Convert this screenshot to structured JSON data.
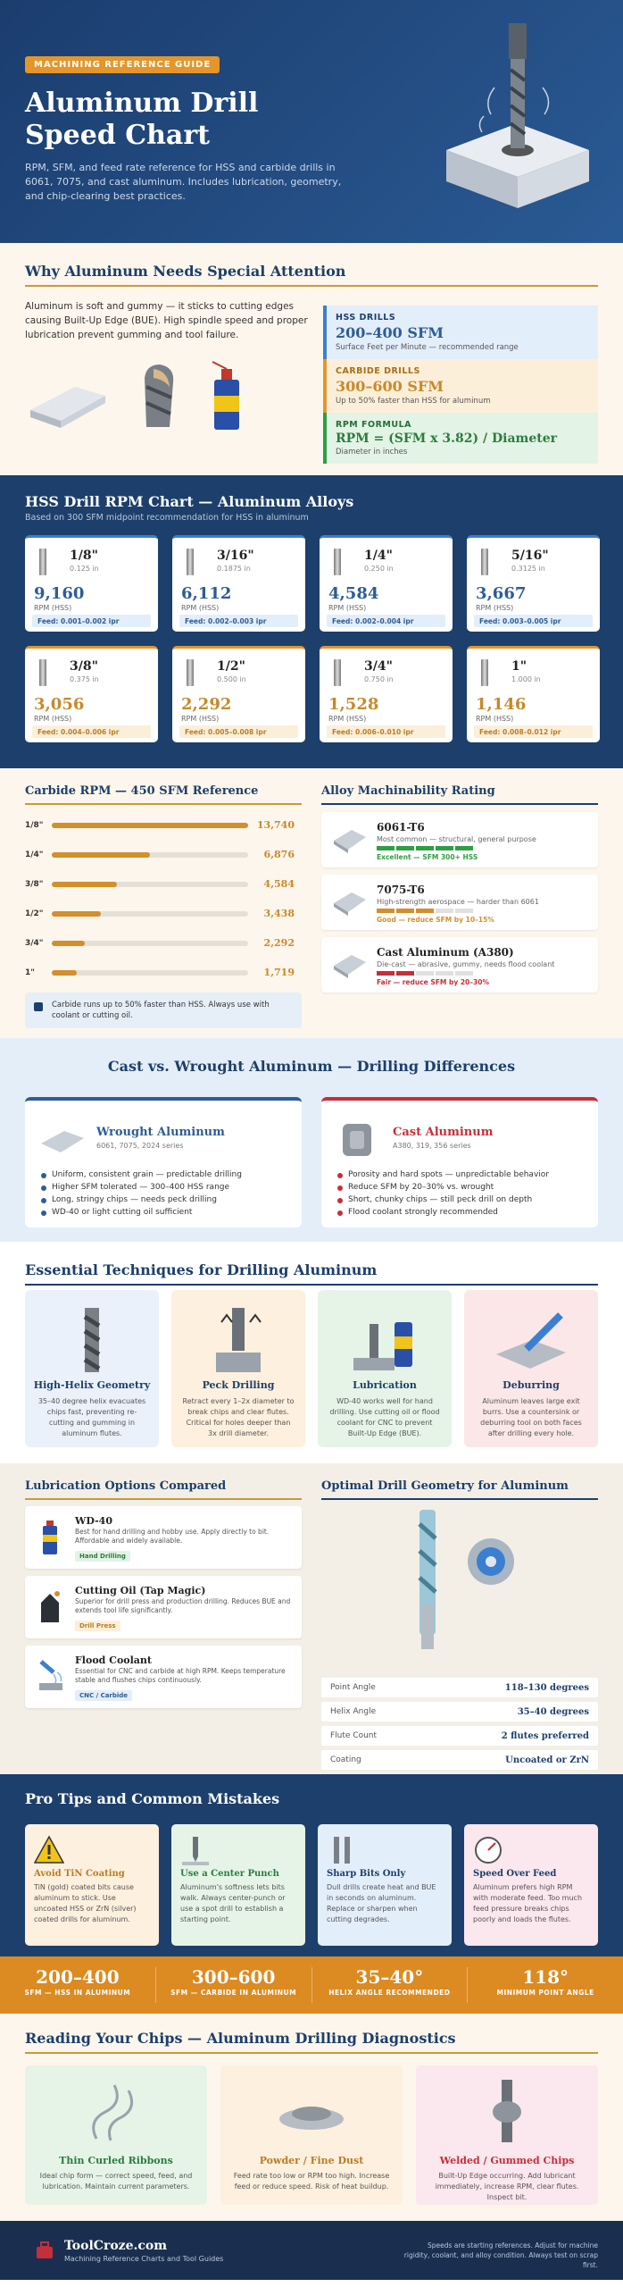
{
  "hero": {
    "badge": "MACHINING REFERENCE GUIDE",
    "title": "Aluminum Drill Speed Chart",
    "description": "RPM, SFM, and feed rate reference for HSS and carbide drills in 6061, 7075, and cast aluminum. Includes lubrication, geometry, and chip-clearing best practices."
  },
  "why": {
    "title": "Why Aluminum Needs Special Attention",
    "body": "Aluminum is soft and gummy — it sticks to cutting edges causing Built-Up Edge (BUE). High spindle speed and proper lubrication prevent gumming and tool failure.",
    "boxes": [
      {
        "label": "HSS DRILLS",
        "value": "200–400 SFM",
        "sub": "Surface Feet per Minute — recommended range"
      },
      {
        "label": "CARBIDE DRILLS",
        "value": "300–600 SFM",
        "sub": "Up to 50% faster than HSS for aluminum"
      },
      {
        "label": "RPM FORMULA",
        "value": "RPM = (SFM x 3.82) / Diameter",
        "sub": "Diameter in inches"
      }
    ]
  },
  "hss": {
    "title": "HSS Drill RPM Chart — Aluminum Alloys",
    "subtitle": "Based on 300 SFM midpoint recommendation for HSS in aluminum",
    "cards": [
      {
        "size": "1/8\"",
        "dec": "0.125 in",
        "rpm": "9,160",
        "unit": "RPM (HSS)",
        "feed": "Feed: 0.001–0.002 ipr"
      },
      {
        "size": "3/16\"",
        "dec": "0.1875 in",
        "rpm": "6,112",
        "unit": "RPM (HSS)",
        "feed": "Feed: 0.002–0.003 ipr"
      },
      {
        "size": "1/4\"",
        "dec": "0.250 in",
        "rpm": "4,584",
        "unit": "RPM (HSS)",
        "feed": "Feed: 0.002–0.004 ipr"
      },
      {
        "size": "5/16\"",
        "dec": "0.3125 in",
        "rpm": "3,667",
        "unit": "RPM (HSS)",
        "feed": "Feed: 0.003–0.005 ipr"
      },
      {
        "size": "3/8\"",
        "dec": "0.375 in",
        "rpm": "3,056",
        "unit": "RPM (HSS)",
        "feed": "Feed: 0.004–0.006 ipr"
      },
      {
        "size": "1/2\"",
        "dec": "0.500 in",
        "rpm": "2,292",
        "unit": "RPM (HSS)",
        "feed": "Feed: 0.005–0.008 ipr"
      },
      {
        "size": "3/4\"",
        "dec": "0.750 in",
        "rpm": "1,528",
        "unit": "RPM (HSS)",
        "feed": "Feed: 0.006–0.010 ipr"
      },
      {
        "size": "1\"",
        "dec": "1.000 in",
        "rpm": "1,146",
        "unit": "RPM (HSS)",
        "feed": "Feed: 0.008–0.012 ipr"
      }
    ]
  },
  "carbide": {
    "title": "Carbide RPM — 450 SFM Reference",
    "note": "Carbide runs up to 50% faster than HSS. Always use with coolant or cutting oil."
  },
  "chart_data": {
    "type": "bar",
    "title": "Carbide RPM — 450 SFM Reference",
    "categories": [
      "1/8\"",
      "1/4\"",
      "3/8\"",
      "1/2\"",
      "3/4\"",
      "1\""
    ],
    "value_labels": [
      "13,740",
      "6,876",
      "4,584",
      "3,438",
      "2,292",
      "1,719"
    ],
    "values": [
      13740,
      6876,
      4584,
      3438,
      2292,
      1719
    ],
    "xlim": [
      0,
      13740
    ],
    "orientation": "horizontal"
  },
  "machinability": {
    "title": "Alloy Machinability Rating",
    "alloys": [
      {
        "name": "6061-T6",
        "desc": "Most common — structural, general purpose",
        "rating": "Excellent — SFM 300+ HSS",
        "score": 5,
        "color": "#2f9e45"
      },
      {
        "name": "7075-T6",
        "desc": "High-strength aerospace — harder than 6061",
        "rating": "Good — reduce SFM by 10–15%",
        "score": 3,
        "color": "#d18f2e"
      },
      {
        "name": "Cast Aluminum (A380)",
        "desc": "Die-cast — abrasive, gummy, needs flood coolant",
        "rating": "Fair — reduce SFM by 20–30%",
        "score": 2,
        "color": "#c62e3a"
      }
    ]
  },
  "compare": {
    "title": "Cast vs. Wrought Aluminum — Drilling Differences",
    "wrought": {
      "name": "Wrought Aluminum",
      "series": "6061, 7075, 2024 series",
      "points": [
        "Uniform, consistent grain — predictable drilling",
        "Higher SFM tolerated — 300–400 HSS range",
        "Long, stringy chips — needs peck drilling",
        "WD-40 or light cutting oil sufficient"
      ]
    },
    "cast": {
      "name": "Cast Aluminum",
      "series": "A380, 319, 356 series",
      "points": [
        "Porosity and hard spots — unpredictable behavior",
        "Reduce SFM by 20–30% vs. wrought",
        "Short, chunky chips — still peck drill on depth",
        "Flood coolant strongly recommended"
      ]
    }
  },
  "techniques": {
    "title": "Essential Techniques for Drilling Aluminum",
    "items": [
      {
        "title": "High-Helix Geometry",
        "desc": "35–40 degree helix evacuates chips fast, preventing re-cutting and gumming in aluminum flutes."
      },
      {
        "title": "Peck Drilling",
        "desc": "Retract every 1–2x diameter to break chips and clear flutes. Critical for holes deeper than 3x drill diameter."
      },
      {
        "title": "Lubrication",
        "desc": "WD-40 works well for hand drilling. Use cutting oil or flood coolant for CNC to prevent Built-Up Edge (BUE)."
      },
      {
        "title": "Deburring",
        "desc": "Aluminum leaves large exit burrs. Use a countersink or deburring tool on both faces after drilling every hole."
      }
    ]
  },
  "lubrication": {
    "title": "Lubrication Options Compared",
    "items": [
      {
        "name": "WD-40",
        "desc": "Best for hand drilling and hobby use. Apply directly to bit. Affordable and widely available.",
        "tag": "Hand Drilling"
      },
      {
        "name": "Cutting Oil (Tap Magic)",
        "desc": "Superior for drill press and production drilling. Reduces BUE and extends tool life significantly.",
        "tag": "Drill Press"
      },
      {
        "name": "Flood Coolant",
        "desc": "Essential for CNC and carbide at high RPM. Keeps temperature stable and flushes chips continuously.",
        "tag": "CNC / Carbide"
      }
    ]
  },
  "geometry": {
    "title": "Optimal Drill Geometry for Aluminum",
    "rows": [
      {
        "k": "Point Angle",
        "v": "118–130 degrees"
      },
      {
        "k": "Helix Angle",
        "v": "35–40 degrees"
      },
      {
        "k": "Flute Count",
        "v": "2 flutes preferred"
      },
      {
        "k": "Coating",
        "v": "Uncoated or ZrN"
      }
    ]
  },
  "tips": {
    "title": "Pro Tips and Common Mistakes",
    "items": [
      {
        "title": "Avoid TiN Coating",
        "desc": "TiN (gold) coated bits cause aluminum to stick. Use uncoated HSS or ZrN (silver) coated drills for aluminum."
      },
      {
        "title": "Use a Center Punch",
        "desc": "Aluminum's softness lets bits walk. Always center-punch or use a spot drill to establish a starting point."
      },
      {
        "title": "Sharp Bits Only",
        "desc": "Dull drills create heat and BUE in seconds on aluminum. Replace or sharpen when cutting degrades."
      },
      {
        "title": "Speed Over Feed",
        "desc": "Aluminum prefers high RPM with moderate feed. Too much feed pressure breaks chips poorly and loads the flutes."
      }
    ]
  },
  "stats": [
    {
      "v": "200–400",
      "l": "SFM — HSS IN ALUMINUM"
    },
    {
      "v": "300–600",
      "l": "SFM — CARBIDE IN ALUMINUM"
    },
    {
      "v": "35–40°",
      "l": "HELIX ANGLE RECOMMENDED"
    },
    {
      "v": "118°",
      "l": "MINIMUM POINT ANGLE"
    }
  ],
  "chips": {
    "title": "Reading Your Chips — Aluminum Drilling Diagnostics",
    "items": [
      {
        "title": "Thin Curled Ribbons",
        "desc": "Ideal chip form — correct speed, feed, and lubrication. Maintain current parameters."
      },
      {
        "title": "Powder / Fine Dust",
        "desc": "Feed rate too low or RPM too high. Increase feed or reduce speed. Risk of heat buildup."
      },
      {
        "title": "Welded / Gummed Chips",
        "desc": "Built-Up Edge occurring. Add lubricant immediately, increase RPM, clear flutes. Inspect bit."
      }
    ]
  },
  "footer": {
    "brand": "ToolCroze.com",
    "tagline": "Machining Reference Charts and Tool Guides",
    "disclaimer": "Speeds are starting references. Adjust for machine rigidity, coolant, and alloy condition. Always test on scrap first."
  }
}
